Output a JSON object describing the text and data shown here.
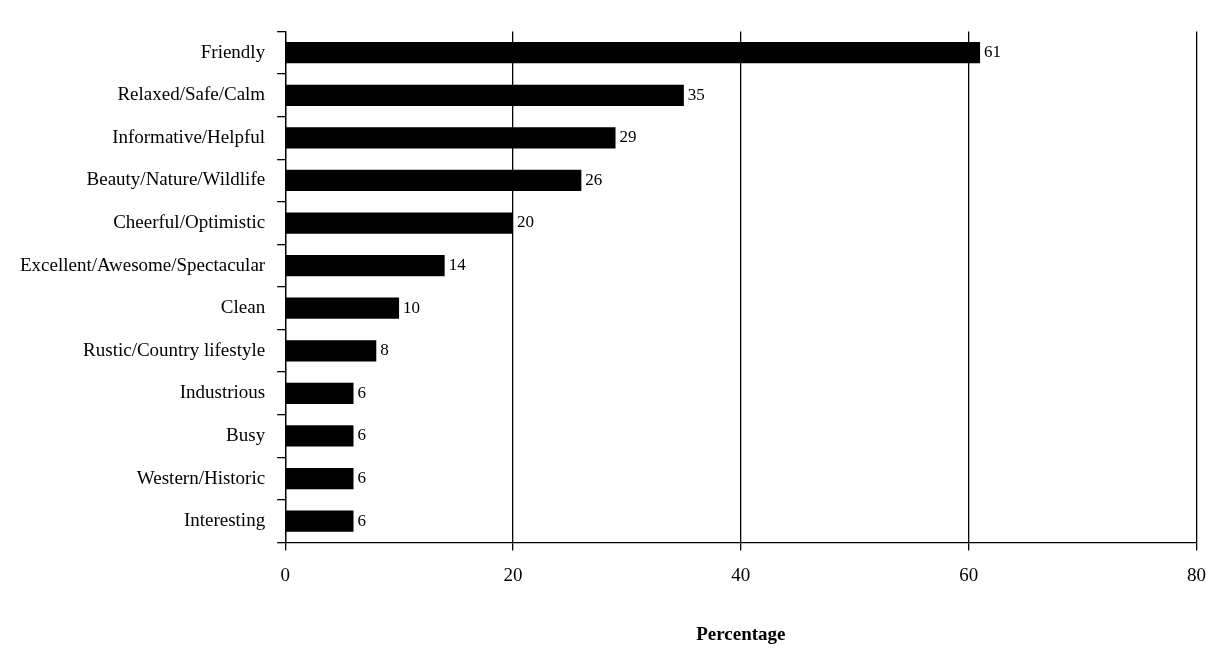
{
  "chart_data": {
    "type": "bar",
    "orientation": "horizontal",
    "xlabel": "Percentage",
    "categories": [
      "Friendly",
      "Relaxed/Safe/Calm",
      "Informative/Helpful",
      "Beauty/Nature/Wildlife",
      "Cheerful/Optimistic",
      "Excellent/Awesome/Spectacular",
      "Clean",
      "Rustic/Country lifestyle",
      "Industrious",
      "Busy",
      "Western/Historic",
      "Interesting"
    ],
    "values": [
      61,
      35,
      29,
      26,
      20,
      14,
      10,
      8,
      6,
      6,
      6,
      6
    ],
    "color": "#000000",
    "xlim": [
      0,
      80
    ],
    "xticks": [
      0,
      20,
      40,
      60,
      80
    ],
    "grid": "x",
    "legend": false,
    "data_labels": true
  }
}
